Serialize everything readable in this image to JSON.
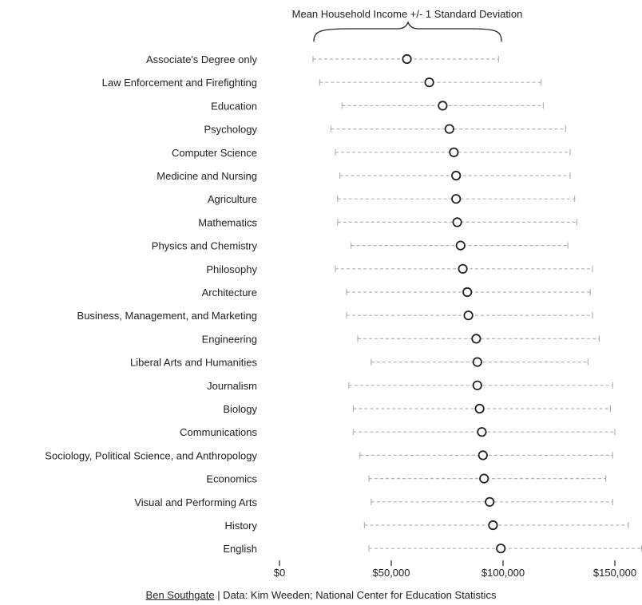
{
  "chart_data": {
    "type": "scatter",
    "annotation": "Mean Household Income +/- 1 Standard Deviation",
    "categories": [
      "Associate's Degree only",
      "Law Enforcement and Firefighting",
      "Education",
      "Psychology",
      "Computer Science",
      "Medicine and Nursing",
      "Agriculture",
      "Mathematics",
      "Physics and Chemistry",
      "Philosophy",
      "Architecture",
      "Business, Management, and Marketing",
      "Engineering",
      "Liberal Arts and Humanities",
      "Journalism",
      "Biology",
      "Communications",
      "Sociology, Political Science, and Anthropology",
      "Economics",
      "Visual and Performing Arts",
      "History",
      "English"
    ],
    "mean": [
      57000,
      67000,
      73000,
      76000,
      78000,
      79000,
      79000,
      79500,
      81000,
      82000,
      84000,
      84500,
      88000,
      88500,
      88500,
      89500,
      90500,
      91000,
      91500,
      94000,
      95500,
      99000
    ],
    "lower": [
      15000,
      18000,
      28000,
      23000,
      25000,
      27000,
      26000,
      26000,
      32000,
      25000,
      30000,
      30000,
      35000,
      41000,
      31000,
      33000,
      33000,
      36000,
      40000,
      41000,
      38000,
      40000
    ],
    "upper": [
      98000,
      117000,
      118000,
      128000,
      130000,
      130000,
      132000,
      133000,
      129000,
      140000,
      139000,
      140000,
      143000,
      138000,
      149000,
      148000,
      150000,
      149000,
      146000,
      149000,
      156000,
      162000
    ],
    "x_ticks": [
      0,
      50000,
      100000,
      150000
    ],
    "x_tick_labels": [
      "$0",
      "$50,000",
      "$100,000",
      "$150,000"
    ],
    "xlim": [
      0,
      162000
    ],
    "grid": false,
    "legend": "none"
  },
  "footer": {
    "author": "Ben Southgate",
    "source": " | Data: Kim Weeden; National Center for Education Statistics"
  }
}
